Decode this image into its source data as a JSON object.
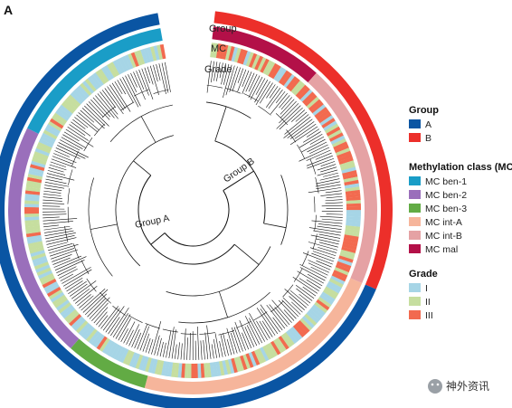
{
  "panel_label": "A",
  "ring_labels": {
    "group": "Group",
    "mc": "MC",
    "grade": "Grade"
  },
  "tree_labels": {
    "group_a": "Group A",
    "group_b": "Group B"
  },
  "legend": {
    "group": {
      "title": "Group",
      "items": [
        {
          "label": "A",
          "color": "#0a55a3"
        },
        {
          "label": "B",
          "color": "#ec2f2a"
        }
      ]
    },
    "mc": {
      "title": "Methylation class (MC)",
      "items": [
        {
          "label": "MC ben-1",
          "color": "#1a9dc7"
        },
        {
          "label": "MC ben-2",
          "color": "#9a6fbb"
        },
        {
          "label": "MC ben-3",
          "color": "#62ab44"
        },
        {
          "label": "MC int-A",
          "color": "#f6b59b"
        },
        {
          "label": "MC int-B",
          "color": "#e5a2a4"
        },
        {
          "label": "MC mal",
          "color": "#b31048"
        }
      ]
    },
    "grade": {
      "title": "Grade",
      "items": [
        {
          "label": "I",
          "color": "#a6d5e6"
        },
        {
          "label": "II",
          "color": "#c6de9f"
        },
        {
          "label": "III",
          "color": "#f26a4f"
        }
      ]
    }
  },
  "group_ring": [
    {
      "label": "B",
      "start": 0.018,
      "end": 0.315
    },
    {
      "label": "A",
      "start": 0.315,
      "end": 0.972
    }
  ],
  "mc_ring": [
    {
      "label": "MC mal",
      "start": 0.018,
      "end": 0.117
    },
    {
      "label": "MC int-B",
      "start": 0.117,
      "end": 0.315
    },
    {
      "label": "MC int-A",
      "start": 0.315,
      "end": 0.542
    },
    {
      "label": "MC ben-3",
      "start": 0.542,
      "end": 0.615
    },
    {
      "label": "MC ben-2",
      "start": 0.615,
      "end": 0.823
    },
    {
      "label": "MC ben-1",
      "start": 0.823,
      "end": 0.972
    }
  ],
  "watermark": "神外资讯"
}
